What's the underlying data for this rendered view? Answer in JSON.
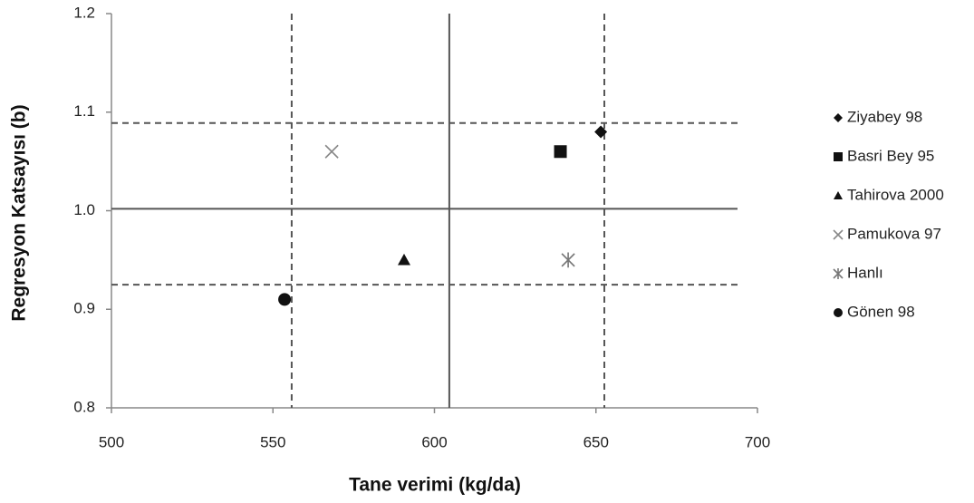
{
  "chart_data": {
    "type": "scatter",
    "x_label": "Tane verimi (kg/da)",
    "y_label": "Regresyon Katsayısı (b)",
    "xlim": [
      500,
      700
    ],
    "xticks": [
      500,
      550,
      600,
      650,
      700
    ],
    "ylim": [
      0.8,
      1.2
    ],
    "yticks": [
      0.8,
      0.9,
      {
        "value": 1,
        "label": "1.0"
      },
      1.1,
      1.2
    ],
    "vlines": [
      {
        "value": 555.8,
        "style": "dashed"
      },
      {
        "value": 604.6,
        "style": "solid"
      },
      {
        "value": 652.6,
        "style": "dashed"
      }
    ],
    "hlines": [
      {
        "value": 1.089,
        "style": "dashed"
      },
      {
        "value": 1.002,
        "style": "solid"
      },
      {
        "value": 0.925,
        "style": "dashed"
      }
    ],
    "legend": "right",
    "series": [
      {
        "name": "Ziyabey 98",
        "marker": "diamond",
        "color": "#111111",
        "x": [
          651.5
        ],
        "values": [
          1.08
        ]
      },
      {
        "name": "Basri Bey 95",
        "marker": "square",
        "color": "#111111",
        "x": [
          639
        ],
        "values": [
          1.06
        ]
      },
      {
        "name": "Tahirova 2000",
        "marker": "triangle",
        "color": "#111111",
        "x": [
          590.6
        ],
        "values": [
          0.95
        ]
      },
      {
        "name": "Pamukova 97",
        "marker": "x",
        "color": "#888888",
        "x": [
          568.2
        ],
        "values": [
          1.06
        ]
      },
      {
        "name": "Hanlı",
        "marker": "star",
        "color": "#777777",
        "x": [
          641.4
        ],
        "values": [
          0.95
        ]
      },
      {
        "name": "Gönen 98",
        "marker": "circle",
        "color": "#111111",
        "x": [
          553.6
        ],
        "values": [
          0.91
        ]
      }
    ]
  }
}
